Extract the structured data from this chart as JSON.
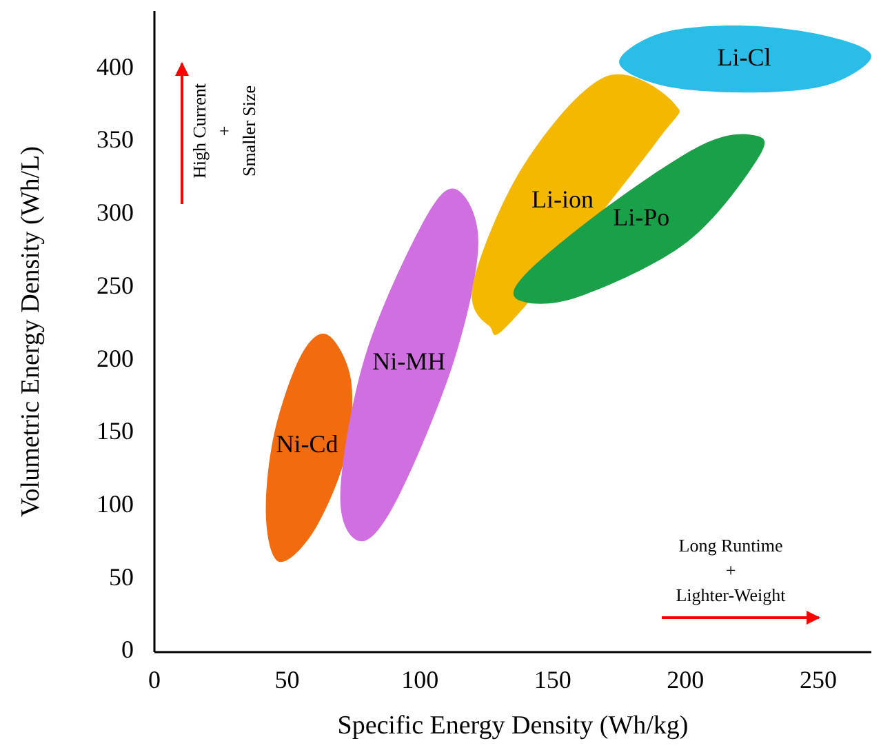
{
  "chart_data": {
    "type": "area",
    "xlabel": "Specific Energy Density (Wh/kg)",
    "ylabel": "Volumetric Energy Density (Wh/L)",
    "xlim": [
      0,
      270
    ],
    "ylim": [
      0,
      440
    ],
    "xticks": [
      0,
      50,
      100,
      150,
      200,
      250
    ],
    "yticks": [
      0,
      50,
      100,
      150,
      200,
      250,
      300,
      350,
      400
    ],
    "legend": false,
    "grid": false,
    "series": [
      {
        "name": "Ni-Cd",
        "color": "#f26b0f",
        "x": [
          65,
          74,
          72,
          60,
          47,
          42,
          45,
          55
        ],
        "values": [
          218,
          187,
          135,
          83,
          62,
          93,
          149,
          203
        ]
      },
      {
        "name": "Ni-MH",
        "color": "#d070e0",
        "x": [
          113,
          122,
          113,
          92,
          78,
          70,
          79,
          100
        ],
        "values": [
          318,
          282,
          201,
          107,
          76,
          107,
          201,
          291
        ]
      },
      {
        "name": "Li-ion",
        "color": "#f5b800",
        "x": [
          196,
          189,
          136,
          126,
          120,
          139,
          170
        ],
        "values": [
          376,
          350,
          230,
          224,
          253,
          334,
          395
        ]
      },
      {
        "name": "Li-Po",
        "color": "#1aa048",
        "x": [
          225,
          228,
          201,
          160,
          138,
          139,
          170,
          206
        ],
        "values": [
          355,
          341,
          282,
          244,
          241,
          258,
          305,
          348
        ]
      },
      {
        "name": "Li-Cl",
        "color": "#29bde8",
        "x": [
          222,
          253,
          270,
          253,
          222,
          191,
          175,
          191
        ],
        "values": [
          430,
          423,
          409,
          389,
          384,
          389,
          405,
          425
        ]
      }
    ],
    "annotations": [
      "High Current\n+\nSmaller Size",
      "Long Runtime\n+\nLighter-Weight"
    ]
  }
}
